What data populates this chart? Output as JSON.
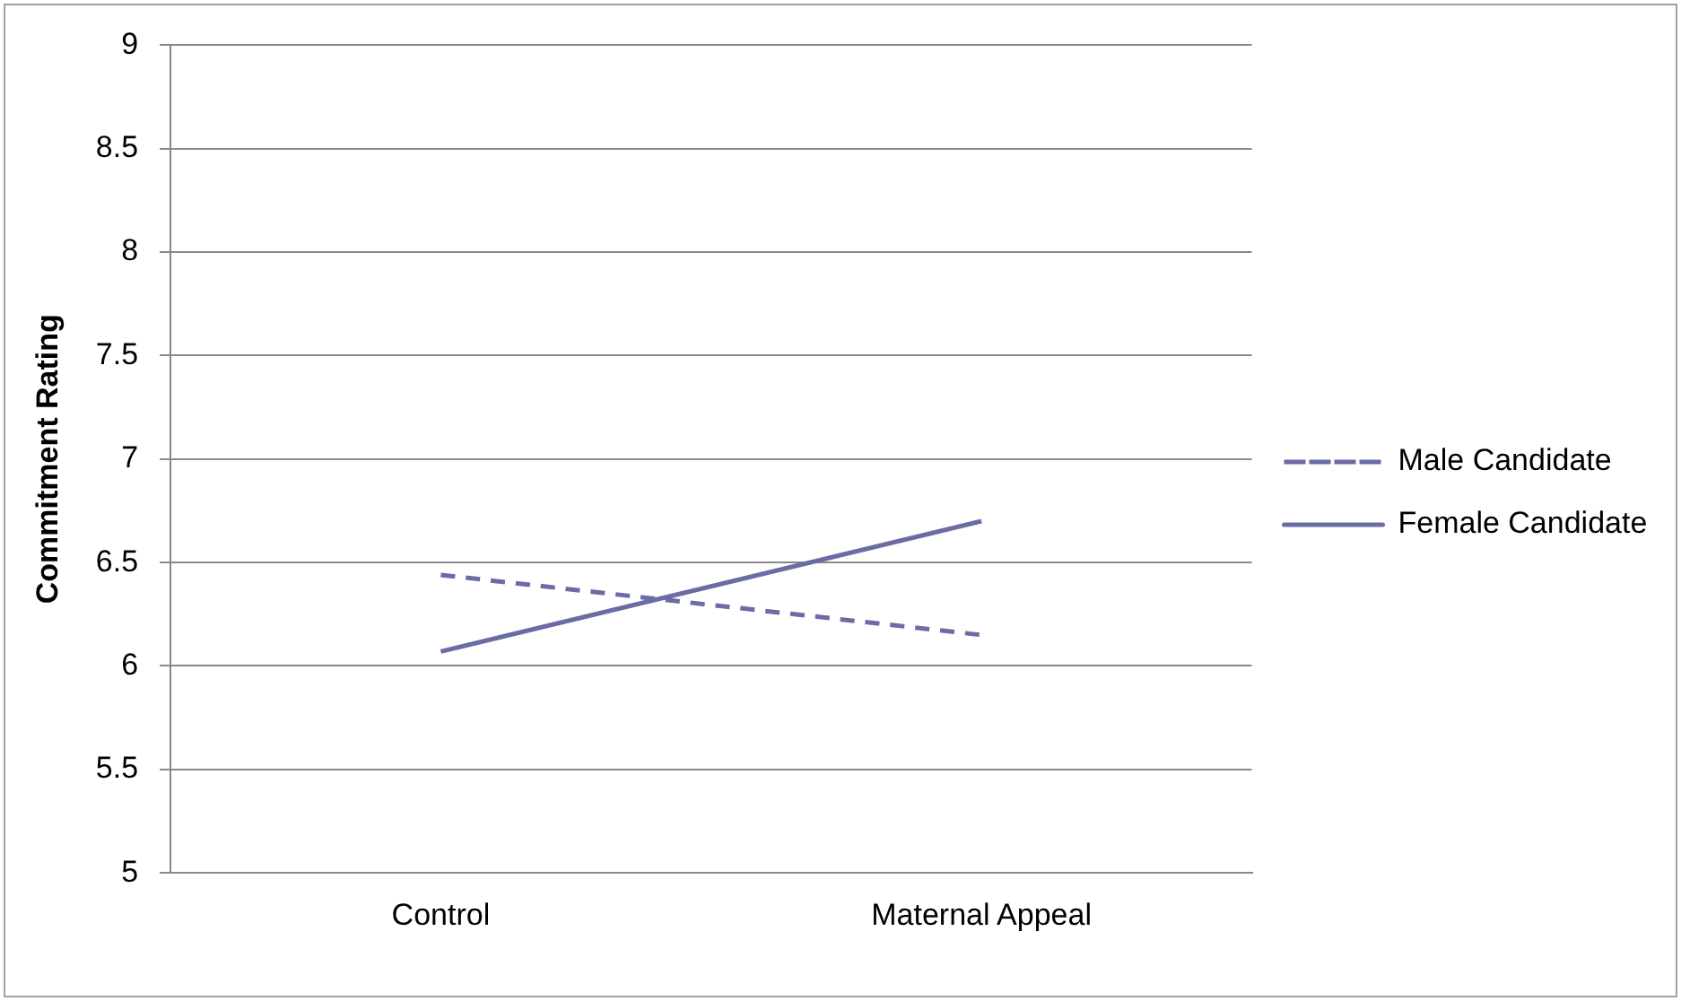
{
  "chart_data": {
    "type": "line",
    "ylabel": "Commitment Rating",
    "categories": [
      "Control",
      "Maternal Appeal"
    ],
    "series": [
      {
        "name": "Male Candidate",
        "color": "#6b6ba6",
        "values": [
          6.44,
          6.15
        ],
        "line_style": "dashed"
      },
      {
        "name": "Female Candidate",
        "color": "#6b6ba6",
        "values": [
          6.07,
          6.7
        ],
        "line_style": "solid"
      }
    ],
    "ylim": [
      5,
      9
    ],
    "yticks": [
      5,
      5.5,
      6,
      6.5,
      7,
      7.5,
      8,
      8.5,
      9
    ],
    "grid": "y",
    "legend": "right",
    "marker": "none"
  }
}
